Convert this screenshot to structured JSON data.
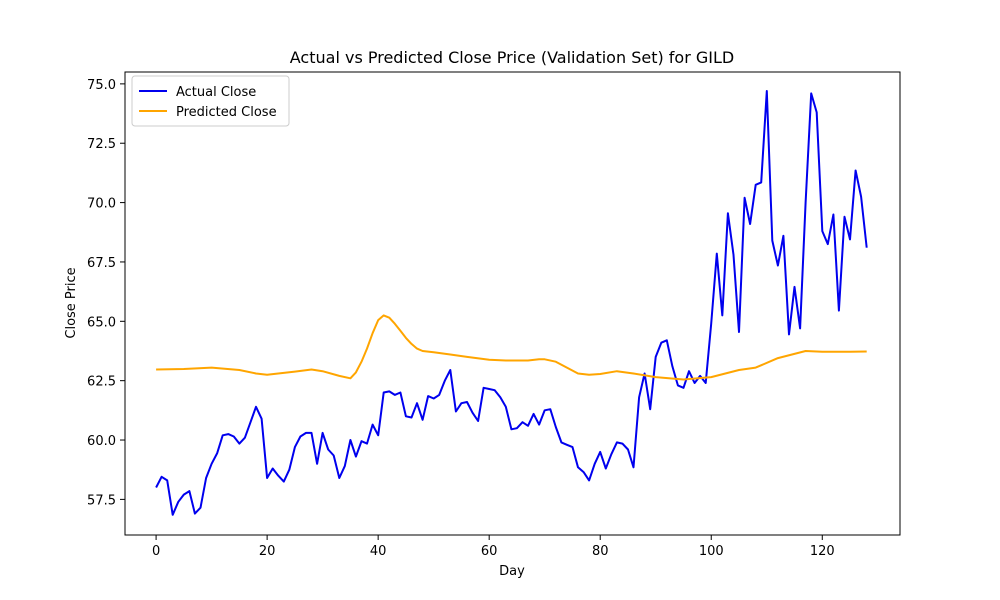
{
  "chart_data": {
    "type": "line",
    "title": "Actual vs Predicted Close Price (Validation Set) for GILD",
    "xlabel": "Day",
    "ylabel": "Close Price",
    "xlim": [
      -5.6,
      134.0
    ],
    "ylim": [
      56.0,
      75.5
    ],
    "xticks": [
      0,
      20,
      40,
      60,
      80,
      100,
      120
    ],
    "yticks": [
      57.5,
      60.0,
      62.5,
      65.0,
      67.5,
      70.0,
      72.5,
      75.0
    ],
    "ytick_labels": [
      "57.5",
      "60.0",
      "62.5",
      "65.0",
      "67.5",
      "70.0",
      "72.5",
      "75.0"
    ],
    "grid": false,
    "legend_position": "top-left",
    "series": [
      {
        "name": "Actual Close",
        "color": "#0000ee",
        "x": [
          0,
          1,
          2,
          3,
          4,
          5,
          6,
          7,
          8,
          9,
          10,
          11,
          12,
          13,
          14,
          15,
          16,
          17,
          18,
          19,
          20,
          21,
          22,
          23,
          24,
          25,
          26,
          27,
          28,
          29,
          30,
          31,
          32,
          33,
          34,
          35,
          36,
          37,
          38,
          39,
          40,
          41,
          42,
          43,
          44,
          45,
          46,
          47,
          48,
          49,
          50,
          51,
          52,
          53,
          54,
          55,
          56,
          57,
          58,
          59,
          60,
          61,
          62,
          63,
          64,
          65,
          66,
          67,
          68,
          69,
          70,
          71,
          72,
          73,
          74,
          75,
          76,
          77,
          78,
          79,
          80,
          81,
          82,
          83,
          84,
          85,
          86,
          87,
          88,
          89,
          90,
          91,
          92,
          93,
          94,
          95,
          96,
          97,
          98,
          99,
          100,
          101,
          102,
          103,
          104,
          105,
          106,
          107,
          108,
          109,
          110,
          111,
          112,
          113,
          114,
          115,
          116,
          117,
          118,
          119,
          120,
          121,
          122,
          123,
          124,
          125,
          126,
          127,
          128
        ],
        "values": [
          58.0,
          58.45,
          58.3,
          56.85,
          57.4,
          57.7,
          57.85,
          56.9,
          57.15,
          58.4,
          59.0,
          59.45,
          60.2,
          60.25,
          60.15,
          59.85,
          60.1,
          60.75,
          61.4,
          60.9,
          58.4,
          58.8,
          58.5,
          58.25,
          58.75,
          59.7,
          60.15,
          60.3,
          60.3,
          59.0,
          60.3,
          59.6,
          59.35,
          58.4,
          58.9,
          60.0,
          59.3,
          59.95,
          59.85,
          60.65,
          60.2,
          62.0,
          62.05,
          61.9,
          62.0,
          61.0,
          60.95,
          61.55,
          60.85,
          61.85,
          61.75,
          61.9,
          62.5,
          62.95,
          61.2,
          61.55,
          61.6,
          61.15,
          60.8,
          62.2,
          62.15,
          62.1,
          61.8,
          61.4,
          60.45,
          60.5,
          60.75,
          60.6,
          61.1,
          60.65,
          61.25,
          61.3,
          60.55,
          59.9,
          59.8,
          59.7,
          58.85,
          58.65,
          58.3,
          59.0,
          59.5,
          58.8,
          59.4,
          59.9,
          59.85,
          59.6,
          58.85,
          61.8,
          62.8,
          61.3,
          63.5,
          64.1,
          64.2,
          63.1,
          62.3,
          62.2,
          62.9,
          62.4,
          62.7,
          62.4,
          64.9,
          67.85,
          65.25,
          69.55,
          67.8,
          64.55,
          70.2,
          69.1,
          70.75,
          70.85,
          74.7,
          68.4,
          67.35,
          68.6,
          64.45,
          66.45,
          64.7,
          70.0,
          74.6,
          73.8,
          68.8,
          68.25,
          69.5,
          65.45,
          69.4,
          68.45,
          71.35,
          70.25,
          68.1
        ]
      },
      {
        "name": "Predicted Close",
        "color": "#ffa500",
        "x": [
          0,
          5,
          10,
          15,
          18,
          20,
          22,
          25,
          28,
          30,
          33,
          35,
          36,
          37,
          38,
          39,
          40,
          41,
          42,
          43,
          44,
          45,
          46,
          47,
          48,
          50,
          53,
          56,
          60,
          63,
          67,
          69,
          70,
          72,
          74,
          76,
          78,
          80,
          83,
          86,
          90,
          95,
          100,
          105,
          108,
          112,
          117,
          120,
          125,
          128
        ],
        "values": [
          62.97,
          62.99,
          63.05,
          62.95,
          62.8,
          62.75,
          62.8,
          62.88,
          62.97,
          62.9,
          62.7,
          62.6,
          62.85,
          63.3,
          63.85,
          64.5,
          65.05,
          65.25,
          65.15,
          64.9,
          64.6,
          64.3,
          64.05,
          63.85,
          63.75,
          63.7,
          63.6,
          63.5,
          63.38,
          63.35,
          63.35,
          63.4,
          63.4,
          63.3,
          63.05,
          62.8,
          62.75,
          62.78,
          62.9,
          62.8,
          62.65,
          62.55,
          62.65,
          62.95,
          63.05,
          63.45,
          63.75,
          63.72,
          63.72,
          63.73
        ]
      }
    ]
  }
}
